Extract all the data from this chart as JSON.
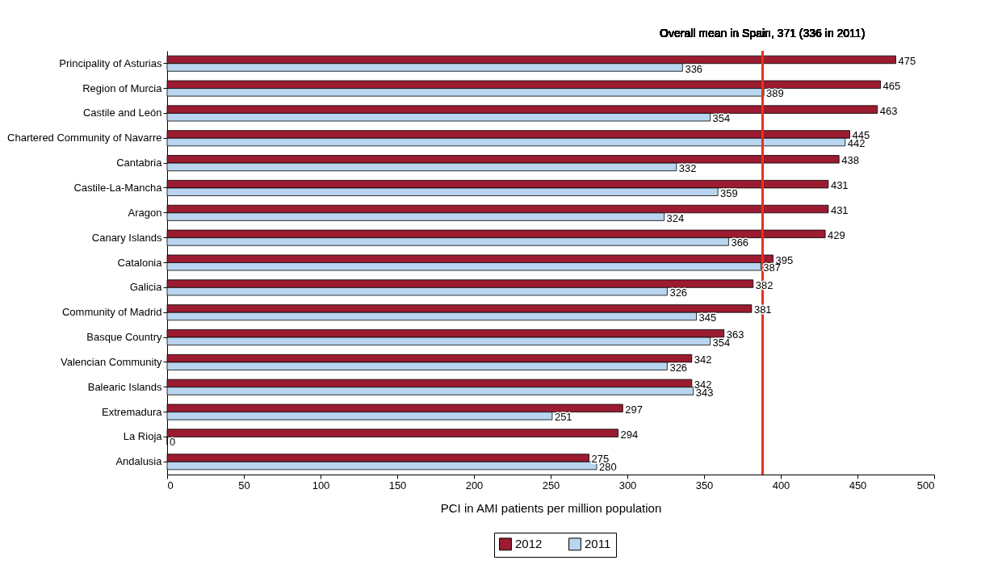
{
  "chart_data": {
    "type": "bar",
    "orientation": "horizontal",
    "xlabel": "PCI in AMI patients per million population",
    "categories": [
      "Principality of Asturias",
      "Region of Murcia",
      "Castile and León",
      "Chartered Community of Navarre",
      "Cantabria",
      "Castile-La-Mancha",
      "Aragon",
      "Canary Islands",
      "Catalonia",
      "Galicia",
      "Community of Madrid",
      "Basque Country",
      "Valencian Community",
      "Balearic Islands",
      "Extremadura",
      "La Rioja",
      "Andalusia"
    ],
    "series": [
      {
        "name": "2012",
        "color": "#9b1b30",
        "values": [
          475,
          465,
          463,
          445,
          438,
          431,
          431,
          429,
          395,
          382,
          381,
          363,
          342,
          342,
          297,
          294,
          275
        ]
      },
      {
        "name": "2011",
        "color": "#b9d5f0",
        "values": [
          336,
          389,
          354,
          442,
          332,
          359,
          324,
          366,
          387,
          326,
          345,
          354,
          326,
          343,
          251,
          0,
          280
        ]
      }
    ],
    "xlim": [
      0,
      500
    ],
    "xticks": [
      0,
      50,
      100,
      150,
      200,
      250,
      300,
      350,
      400,
      450,
      500
    ],
    "data_labels": true,
    "legend": "bottom",
    "grid": false,
    "ref_lines": [
      {
        "axis": "x",
        "value": 388,
        "label": "Overall mean in Spain, 371 (336 in 2011)",
        "color": "#e8331c"
      }
    ]
  }
}
